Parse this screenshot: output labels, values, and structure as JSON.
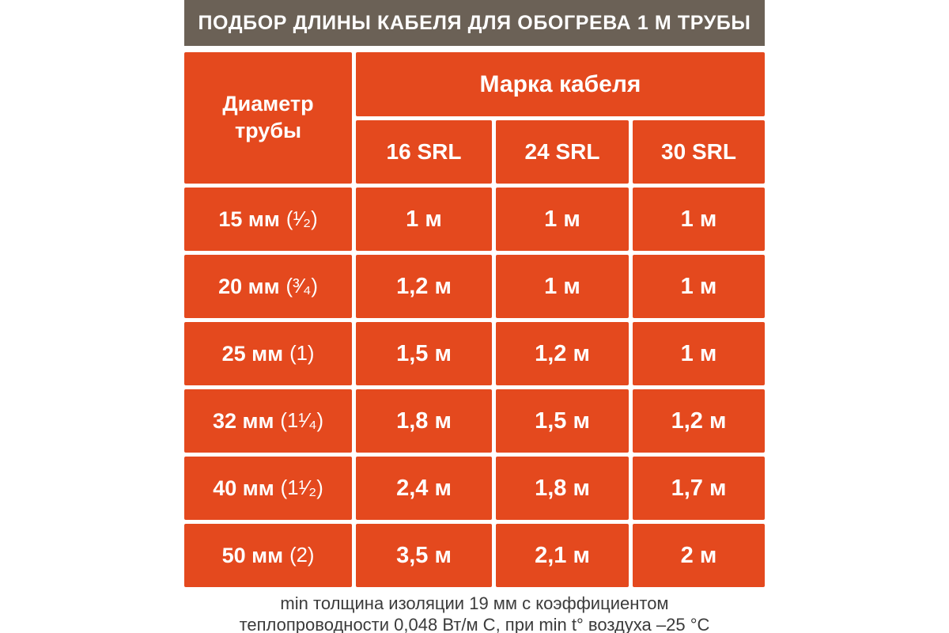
{
  "title": "ПОДБОР ДЛИНЫ КАБЕЛЯ ДЛЯ ОБОГРЕВА 1 М ТРУБЫ",
  "table": {
    "corner_header": "Диаметр трубы",
    "group_header": "Марка кабеля",
    "columns": [
      "16 SRL",
      "24 SRL",
      "30 SRL"
    ],
    "rows": [
      {
        "size": "15 мм",
        "inches": "(¹⁄₂)",
        "values": [
          "1 м",
          "1 м",
          "1 м"
        ]
      },
      {
        "size": "20 мм",
        "inches": "(³⁄₄)",
        "values": [
          "1,2 м",
          "1 м",
          "1 м"
        ]
      },
      {
        "size": "25 мм",
        "inches": "(1)",
        "values": [
          "1,5 м",
          "1,2 м",
          "1 м"
        ]
      },
      {
        "size": "32 мм",
        "inches": "(1¹⁄₄)",
        "values": [
          "1,8 м",
          "1,5 м",
          "1,2 м"
        ]
      },
      {
        "size": "40 мм",
        "inches": "(1¹⁄₂)",
        "values": [
          "2,4 м",
          "1,8 м",
          "1,7 м"
        ]
      },
      {
        "size": "50 мм",
        "inches": "(2)",
        "values": [
          "3,5 м",
          "2,1 м",
          "2 м"
        ]
      }
    ]
  },
  "footnote": {
    "line1": "min толщина изоляции 19 мм с коэффициентом",
    "line2": "теплопроводности 0,048 Вт/м С, при min t° воздуха –25 °C"
  },
  "colors": {
    "cell_orange": "#e4491e",
    "title_bar_gray": "#6b6156",
    "table_text_white": "#ffffff",
    "footnote_text": "#3b3b3b",
    "background": "#ffffff"
  },
  "chart_data": {
    "type": "table",
    "title": "ПОДБОР ДЛИНЫ КАБЕЛЯ ДЛЯ ОБОГРЕВА 1 М ТРУБЫ",
    "row_header": "Диаметр трубы",
    "column_group": "Марка кабеля",
    "columns": [
      "16 SRL",
      "24 SRL",
      "30 SRL"
    ],
    "rows": [
      {
        "diameter_mm": 15,
        "diameter_inch": "1/2",
        "lengths_m": [
          1.0,
          1.0,
          1.0
        ]
      },
      {
        "diameter_mm": 20,
        "diameter_inch": "3/4",
        "lengths_m": [
          1.2,
          1.0,
          1.0
        ]
      },
      {
        "diameter_mm": 25,
        "diameter_inch": "1",
        "lengths_m": [
          1.5,
          1.2,
          1.0
        ]
      },
      {
        "diameter_mm": 32,
        "diameter_inch": "1 1/4",
        "lengths_m": [
          1.8,
          1.5,
          1.2
        ]
      },
      {
        "diameter_mm": 40,
        "diameter_inch": "1 1/2",
        "lengths_m": [
          2.4,
          1.8,
          1.7
        ]
      },
      {
        "diameter_mm": 50,
        "diameter_inch": "2",
        "lengths_m": [
          3.5,
          2.1,
          2.0
        ]
      }
    ],
    "footnote": "min толщина изоляции 19 мм с коэффициентом теплопроводности 0,048 Вт/м С, при min t° воздуха –25 °C"
  }
}
